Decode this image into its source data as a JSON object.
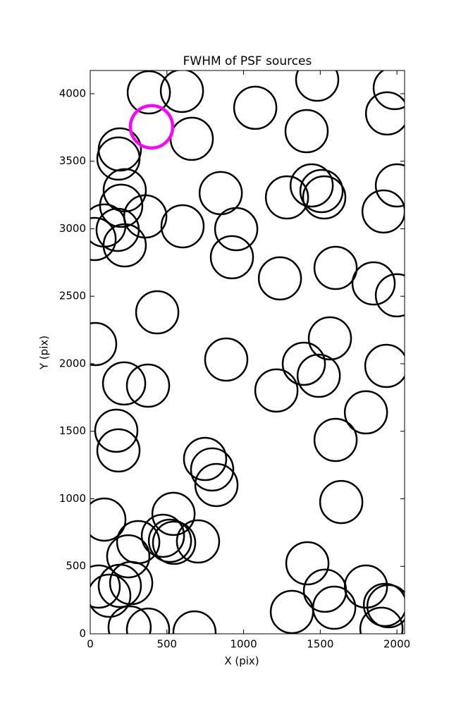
{
  "chart_data": {
    "type": "scatter",
    "title": "FWHM of PSF sources",
    "x_label": "X (pix)",
    "y_label": "Y (pix)",
    "xlim": [
      0,
      2050
    ],
    "ylim": [
      0,
      4172
    ],
    "xticks": [
      0,
      500,
      1000,
      1500,
      2000
    ],
    "yticks": [
      0,
      500,
      1000,
      1500,
      2000,
      2500,
      3000,
      3500,
      4000
    ],
    "color": "#000000",
    "x": [
      382,
      598,
      1076,
      1480,
      1986,
      193,
      184,
      662,
      1411,
      1936,
      225,
      851,
      1444,
      1283,
      1508,
      1526,
      2000,
      1913,
      202,
      359,
      92,
      179,
      28,
      225,
      602,
      952,
      924,
      1237,
      1600,
      1848,
      2000,
      437,
      32,
      887,
      1563,
      1393,
      1490,
      1931,
      221,
      377,
      1214,
      1798,
      170,
      184,
      1600,
      749,
      795,
      823,
      1637,
      92,
      543,
      474,
      520,
      547,
      703,
      313,
      248,
      1416,
      55,
      124,
      193,
      267,
      1531,
      1798,
      1591,
      1315,
      1922,
      1945,
      1899,
      257,
      377,
      680
    ],
    "y": [
      4010,
      4021,
      3896,
      4104,
      4042,
      3587,
      3520,
      3666,
      3723,
      3854,
      3285,
      3264,
      3321,
      3232,
      3279,
      3232,
      3321,
      3128,
      3170,
      3091,
      3024,
      2992,
      2924,
      2877,
      3018,
      2997,
      2789,
      2632,
      2710,
      2595,
      2507,
      2381,
      2146,
      2031,
      2188,
      2000,
      1911,
      1984,
      1854,
      1838,
      1802,
      1640,
      1504,
      1358,
      1436,
      1295,
      1217,
      1102,
      976,
      846,
      888,
      726,
      689,
      674,
      684,
      679,
      574,
      522,
      350,
      282,
      355,
      376,
      319,
      350,
      193,
      162,
      214,
      204,
      37,
      47,
      31,
      10
    ],
    "highlight": {
      "x": 400,
      "y": 3755,
      "color": "#ff00ff"
    }
  }
}
